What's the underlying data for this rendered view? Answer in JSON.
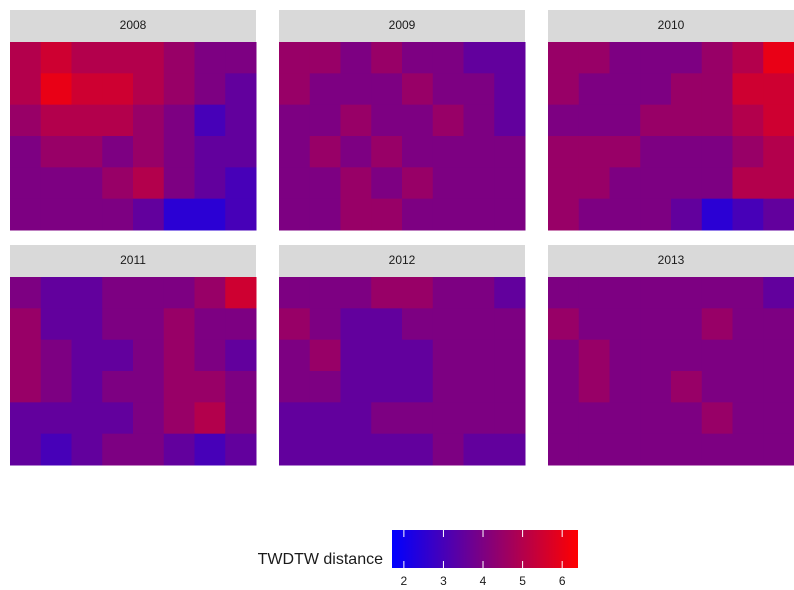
{
  "chart_data": [
    {
      "type": "heatmap",
      "title": "2008",
      "values": [
        [
          5,
          5.5,
          5,
          5,
          5,
          4.5,
          4,
          4
        ],
        [
          5,
          6,
          5.5,
          5.5,
          5,
          4.5,
          4,
          3.5
        ],
        [
          4.5,
          5,
          5,
          5,
          4.5,
          4,
          3,
          3.5
        ],
        [
          4,
          4.5,
          4.5,
          4,
          4.5,
          4,
          3.5,
          3.5
        ],
        [
          4,
          4,
          4,
          4.5,
          5,
          4,
          3.5,
          3
        ],
        [
          4,
          4,
          4,
          4,
          3.5,
          2.5,
          2.5,
          3
        ]
      ]
    },
    {
      "type": "heatmap",
      "title": "2009",
      "values": [
        [
          4.5,
          4.5,
          4,
          4.5,
          4,
          4,
          3.5,
          3.5
        ],
        [
          4.5,
          4,
          4,
          4,
          4.5,
          4,
          4,
          3.5
        ],
        [
          4,
          4,
          4.5,
          4,
          4,
          4.5,
          4,
          3.5
        ],
        [
          4,
          4.5,
          4,
          4.5,
          4,
          4,
          4,
          4
        ],
        [
          4,
          4,
          4.5,
          4,
          4.5,
          4,
          4,
          4
        ],
        [
          4,
          4,
          4.5,
          4.5,
          4,
          4,
          4,
          4
        ]
      ]
    },
    {
      "type": "heatmap",
      "title": "2010",
      "values": [
        [
          4.5,
          4.5,
          4,
          4,
          4,
          4.5,
          5,
          6
        ],
        [
          4.5,
          4,
          4,
          4,
          4.5,
          4.5,
          5.5,
          5.5
        ],
        [
          4,
          4,
          4,
          4.5,
          4.5,
          4.5,
          5,
          5.5
        ],
        [
          4.5,
          4.5,
          4.5,
          4,
          4,
          4,
          4.5,
          5
        ],
        [
          4.5,
          4.5,
          4,
          4,
          4,
          4,
          5,
          5
        ],
        [
          4.5,
          4,
          4,
          4,
          3.5,
          2.5,
          3,
          3.5
        ]
      ]
    },
    {
      "type": "heatmap",
      "title": "2011",
      "values": [
        [
          4,
          3.5,
          3.5,
          4,
          4,
          4,
          4.5,
          5.5
        ],
        [
          4.5,
          3.5,
          3.5,
          4,
          4,
          4.5,
          4,
          4
        ],
        [
          4.5,
          4,
          3.5,
          3.5,
          4,
          4.5,
          4,
          3.5
        ],
        [
          4.5,
          4,
          3.5,
          4,
          4,
          4.5,
          4.5,
          4
        ],
        [
          3.5,
          3.5,
          3.5,
          3.5,
          4,
          4.5,
          5,
          4
        ],
        [
          3.5,
          3,
          3.5,
          4,
          4,
          3.5,
          3,
          3.5
        ]
      ]
    },
    {
      "type": "heatmap",
      "title": "2012",
      "values": [
        [
          4,
          4,
          4,
          4.5,
          4.5,
          4,
          4,
          3.5
        ],
        [
          4.5,
          4,
          3.5,
          3.5,
          4,
          4,
          4,
          4
        ],
        [
          4,
          4.5,
          3.5,
          3.5,
          3.5,
          4,
          4,
          4
        ],
        [
          4,
          4,
          3.5,
          3.5,
          3.5,
          4,
          4,
          4
        ],
        [
          3.5,
          3.5,
          3.5,
          4,
          4,
          4,
          4,
          4
        ],
        [
          3.5,
          3.5,
          3.5,
          3.5,
          3.5,
          4,
          3.5,
          3.5
        ]
      ]
    },
    {
      "type": "heatmap",
      "title": "2013",
      "values": [
        [
          4,
          4,
          4,
          4,
          4,
          4,
          4,
          3.5
        ],
        [
          4.5,
          4,
          4,
          4,
          4,
          4.5,
          4,
          4
        ],
        [
          4,
          4.5,
          4,
          4,
          4,
          4,
          4,
          4
        ],
        [
          4,
          4.5,
          4,
          4,
          4.5,
          4,
          4,
          4
        ],
        [
          4,
          4,
          4,
          4,
          4,
          4.5,
          4,
          4
        ],
        [
          4,
          4,
          4,
          4,
          4,
          4,
          4,
          4
        ]
      ]
    }
  ],
  "colorbar": {
    "title": "TWDTW distance",
    "lim": [
      1.7,
      6.4
    ],
    "ticks": [
      2,
      3,
      4,
      5,
      6
    ],
    "colors": [
      "#0000ff",
      "#ff0000"
    ]
  }
}
